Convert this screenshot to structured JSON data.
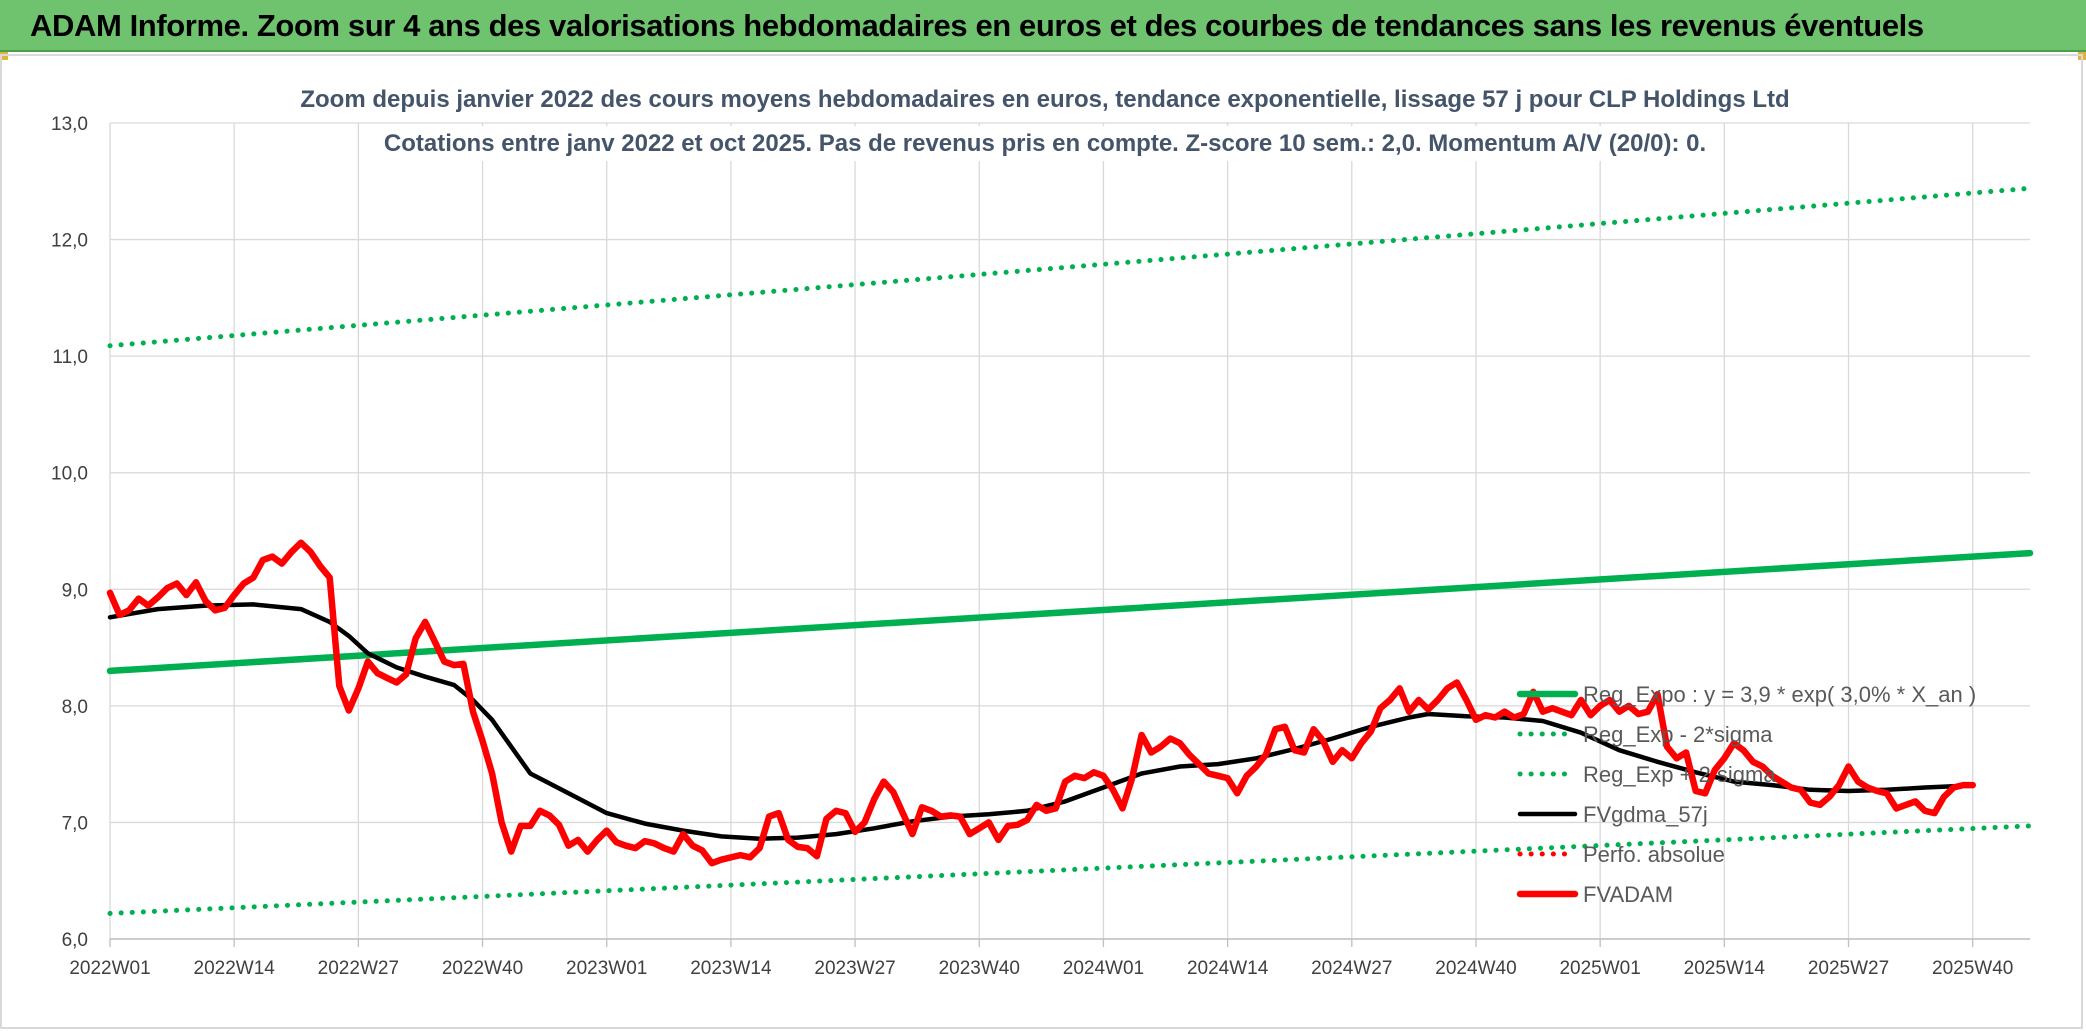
{
  "header": {
    "banner_text": "ADAM Informe. Zoom sur 4 ans des valorisations hebdomadaires en euros et des courbes de tendances sans les revenus éventuels",
    "banner_color": "#6fc36f"
  },
  "chart_data": {
    "type": "line",
    "title_lines": [
      "Zoom depuis janvier 2022 des cours moyens hebdomadaires en euros, tendance exponentielle, lissage 57 j pour CLP Holdings Ltd",
      "Cotations entre janv 2022 et oct 2025. Pas de revenus pris en compte. Z-score 10 sem.: 2,0. Momentum A/V (20/0): 0."
    ],
    "xlabel": "",
    "ylabel": "",
    "ylim": [
      6.0,
      13.0
    ],
    "y_ticks": [
      "6,0",
      "7,0",
      "8,0",
      "9,0",
      "10,0",
      "11,0",
      "12,0",
      "13,0"
    ],
    "x_ticks": [
      "2022W01",
      "2022W14",
      "2022W27",
      "2022W40",
      "2023W01",
      "2023W14",
      "2023W27",
      "2023W40",
      "2024W01",
      "2024W14",
      "2024W27",
      "2024W40",
      "2025W01",
      "2025W14",
      "2025W27",
      "2025W40"
    ],
    "x_range_weeks": [
      0,
      201
    ],
    "grid": true,
    "legend_position": "right",
    "series": [
      {
        "name": "Reg_Expo : y = 3,9 * exp( 3,0% *  X_an )",
        "color": "#00b050",
        "style": "solid-thick",
        "points": [
          [
            0,
            8.3
          ],
          [
            201,
            9.31
          ]
        ]
      },
      {
        "name": "Reg_Exp - 2*sigma",
        "color": "#00b050",
        "style": "dotted",
        "points": [
          [
            0,
            6.22
          ],
          [
            201,
            6.97
          ]
        ]
      },
      {
        "name": "Reg_Exp + 2 sigma",
        "color": "#00b050",
        "style": "dotted",
        "points": [
          [
            0,
            11.09
          ],
          [
            201,
            12.44
          ]
        ]
      },
      {
        "name": "FVgdma_57j",
        "color": "#000000",
        "style": "solid",
        "points": [
          [
            0,
            8.76
          ],
          [
            5,
            8.83
          ],
          [
            10,
            8.86
          ],
          [
            15,
            8.87
          ],
          [
            20,
            8.83
          ],
          [
            23,
            8.72
          ],
          [
            25,
            8.6
          ],
          [
            27,
            8.45
          ],
          [
            30,
            8.33
          ],
          [
            33,
            8.25
          ],
          [
            36,
            8.18
          ],
          [
            38,
            8.05
          ],
          [
            40,
            7.88
          ],
          [
            42,
            7.65
          ],
          [
            44,
            7.42
          ],
          [
            48,
            7.25
          ],
          [
            52,
            7.08
          ],
          [
            56,
            6.99
          ],
          [
            60,
            6.93
          ],
          [
            64,
            6.88
          ],
          [
            68,
            6.86
          ],
          [
            72,
            6.87
          ],
          [
            76,
            6.9
          ],
          [
            80,
            6.95
          ],
          [
            84,
            7.01
          ],
          [
            88,
            7.05
          ],
          [
            92,
            7.07
          ],
          [
            96,
            7.1
          ],
          [
            100,
            7.18
          ],
          [
            104,
            7.3
          ],
          [
            108,
            7.42
          ],
          [
            112,
            7.48
          ],
          [
            116,
            7.5
          ],
          [
            120,
            7.55
          ],
          [
            124,
            7.63
          ],
          [
            128,
            7.72
          ],
          [
            132,
            7.82
          ],
          [
            136,
            7.9
          ],
          [
            138,
            7.93
          ],
          [
            142,
            7.91
          ],
          [
            146,
            7.9
          ],
          [
            150,
            7.87
          ],
          [
            154,
            7.77
          ],
          [
            158,
            7.62
          ],
          [
            162,
            7.52
          ],
          [
            166,
            7.43
          ],
          [
            170,
            7.35
          ],
          [
            174,
            7.32
          ],
          [
            178,
            7.28
          ],
          [
            182,
            7.27
          ],
          [
            186,
            7.28
          ],
          [
            190,
            7.3
          ],
          [
            193,
            7.31
          ]
        ]
      },
      {
        "name": "Perfo. absolue",
        "color": "#ff0000",
        "style": "dotted",
        "points": []
      },
      {
        "name": "FVADAM",
        "color": "#ff0000",
        "style": "solid-thick",
        "points": [
          [
            0,
            8.97
          ],
          [
            1,
            8.78
          ],
          [
            2,
            8.82
          ],
          [
            3,
            8.92
          ],
          [
            4,
            8.86
          ],
          [
            5,
            8.93
          ],
          [
            6,
            9.01
          ],
          [
            7,
            9.05
          ],
          [
            8,
            8.95
          ],
          [
            9,
            9.06
          ],
          [
            10,
            8.9
          ],
          [
            11,
            8.82
          ],
          [
            12,
            8.84
          ],
          [
            13,
            8.95
          ],
          [
            14,
            9.05
          ],
          [
            15,
            9.1
          ],
          [
            16,
            9.25
          ],
          [
            17,
            9.28
          ],
          [
            18,
            9.22
          ],
          [
            19,
            9.32
          ],
          [
            20,
            9.4
          ],
          [
            21,
            9.32
          ],
          [
            22,
            9.2
          ],
          [
            23,
            9.1
          ],
          [
            24,
            8.17
          ],
          [
            25,
            7.96
          ],
          [
            26,
            8.15
          ],
          [
            27,
            8.38
          ],
          [
            28,
            8.28
          ],
          [
            29,
            8.24
          ],
          [
            30,
            8.2
          ],
          [
            31,
            8.27
          ],
          [
            32,
            8.58
          ],
          [
            33,
            8.72
          ],
          [
            34,
            8.55
          ],
          [
            35,
            8.38
          ],
          [
            36,
            8.35
          ],
          [
            37,
            8.36
          ],
          [
            38,
            7.95
          ],
          [
            39,
            7.7
          ],
          [
            40,
            7.42
          ],
          [
            41,
            7.0
          ],
          [
            42,
            6.75
          ],
          [
            43,
            6.97
          ],
          [
            44,
            6.97
          ],
          [
            45,
            7.1
          ],
          [
            46,
            7.06
          ],
          [
            47,
            6.98
          ],
          [
            48,
            6.8
          ],
          [
            49,
            6.85
          ],
          [
            50,
            6.75
          ],
          [
            51,
            6.85
          ],
          [
            52,
            6.93
          ],
          [
            53,
            6.83
          ],
          [
            54,
            6.8
          ],
          [
            55,
            6.78
          ],
          [
            56,
            6.84
          ],
          [
            57,
            6.82
          ],
          [
            58,
            6.78
          ],
          [
            59,
            6.75
          ],
          [
            60,
            6.9
          ],
          [
            61,
            6.8
          ],
          [
            62,
            6.76
          ],
          [
            63,
            6.65
          ],
          [
            64,
            6.68
          ],
          [
            65,
            6.7
          ],
          [
            66,
            6.72
          ],
          [
            67,
            6.7
          ],
          [
            68,
            6.78
          ],
          [
            69,
            7.05
          ],
          [
            70,
            7.08
          ],
          [
            71,
            6.85
          ],
          [
            72,
            6.79
          ],
          [
            73,
            6.78
          ],
          [
            74,
            6.71
          ],
          [
            75,
            7.03
          ],
          [
            76,
            7.1
          ],
          [
            77,
            7.08
          ],
          [
            78,
            6.92
          ],
          [
            79,
            7.0
          ],
          [
            80,
            7.2
          ],
          [
            81,
            7.35
          ],
          [
            82,
            7.26
          ],
          [
            83,
            7.08
          ],
          [
            84,
            6.9
          ],
          [
            85,
            7.13
          ],
          [
            86,
            7.1
          ],
          [
            87,
            7.05
          ],
          [
            88,
            7.06
          ],
          [
            89,
            7.05
          ],
          [
            90,
            6.9
          ],
          [
            91,
            6.95
          ],
          [
            92,
            7.0
          ],
          [
            93,
            6.85
          ],
          [
            94,
            6.97
          ],
          [
            95,
            6.98
          ],
          [
            96,
            7.02
          ],
          [
            97,
            7.15
          ],
          [
            98,
            7.1
          ],
          [
            99,
            7.12
          ],
          [
            100,
            7.35
          ],
          [
            101,
            7.4
          ],
          [
            102,
            7.38
          ],
          [
            103,
            7.43
          ],
          [
            104,
            7.4
          ],
          [
            105,
            7.28
          ],
          [
            106,
            7.12
          ],
          [
            107,
            7.38
          ],
          [
            108,
            7.75
          ],
          [
            109,
            7.6
          ],
          [
            110,
            7.65
          ],
          [
            111,
            7.72
          ],
          [
            112,
            7.68
          ],
          [
            113,
            7.58
          ],
          [
            114,
            7.5
          ],
          [
            115,
            7.42
          ],
          [
            116,
            7.4
          ],
          [
            117,
            7.38
          ],
          [
            118,
            7.25
          ],
          [
            119,
            7.4
          ],
          [
            120,
            7.48
          ],
          [
            121,
            7.58
          ],
          [
            122,
            7.8
          ],
          [
            123,
            7.82
          ],
          [
            124,
            7.62
          ],
          [
            125,
            7.6
          ],
          [
            126,
            7.8
          ],
          [
            127,
            7.7
          ],
          [
            128,
            7.52
          ],
          [
            129,
            7.62
          ],
          [
            130,
            7.55
          ],
          [
            131,
            7.68
          ],
          [
            132,
            7.78
          ],
          [
            133,
            7.98
          ],
          [
            134,
            8.05
          ],
          [
            135,
            8.15
          ],
          [
            136,
            7.95
          ],
          [
            137,
            8.05
          ],
          [
            138,
            7.97
          ],
          [
            139,
            8.05
          ],
          [
            140,
            8.15
          ],
          [
            141,
            8.2
          ],
          [
            142,
            8.05
          ],
          [
            143,
            7.88
          ],
          [
            144,
            7.92
          ],
          [
            145,
            7.9
          ],
          [
            146,
            7.95
          ],
          [
            147,
            7.9
          ],
          [
            148,
            7.93
          ],
          [
            149,
            8.12
          ],
          [
            150,
            7.95
          ],
          [
            151,
            7.98
          ],
          [
            152,
            7.95
          ],
          [
            153,
            7.92
          ],
          [
            154,
            8.05
          ],
          [
            155,
            7.92
          ],
          [
            156,
            8.0
          ],
          [
            157,
            8.05
          ],
          [
            158,
            7.95
          ],
          [
            159,
            8.0
          ],
          [
            160,
            7.93
          ],
          [
            161,
            7.95
          ],
          [
            162,
            8.1
          ],
          [
            163,
            7.65
          ],
          [
            164,
            7.55
          ],
          [
            165,
            7.6
          ],
          [
            166,
            7.27
          ],
          [
            167,
            7.25
          ],
          [
            168,
            7.45
          ],
          [
            169,
            7.55
          ],
          [
            170,
            7.68
          ],
          [
            171,
            7.62
          ],
          [
            172,
            7.52
          ],
          [
            173,
            7.48
          ],
          [
            174,
            7.4
          ],
          [
            175,
            7.35
          ],
          [
            176,
            7.3
          ],
          [
            177,
            7.28
          ],
          [
            178,
            7.17
          ],
          [
            179,
            7.15
          ],
          [
            180,
            7.22
          ],
          [
            181,
            7.32
          ],
          [
            182,
            7.48
          ],
          [
            183,
            7.35
          ],
          [
            184,
            7.3
          ],
          [
            185,
            7.27
          ],
          [
            186,
            7.25
          ],
          [
            187,
            7.12
          ],
          [
            188,
            7.15
          ],
          [
            189,
            7.18
          ],
          [
            190,
            7.1
          ],
          [
            191,
            7.08
          ],
          [
            192,
            7.22
          ],
          [
            193,
            7.3
          ],
          [
            194,
            7.32
          ],
          [
            195,
            7.32
          ]
        ]
      }
    ]
  }
}
